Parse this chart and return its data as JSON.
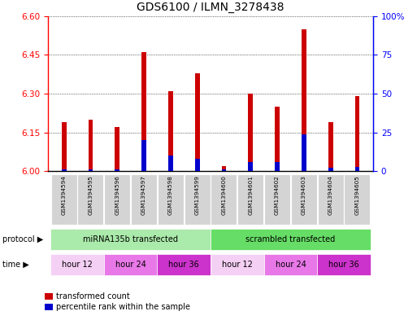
{
  "title": "GDS6100 / ILMN_3278438",
  "samples": [
    "GSM1394594",
    "GSM1394595",
    "GSM1394596",
    "GSM1394597",
    "GSM1394598",
    "GSM1394599",
    "GSM1394600",
    "GSM1394601",
    "GSM1394602",
    "GSM1394603",
    "GSM1394604",
    "GSM1394605"
  ],
  "red_values": [
    6.19,
    6.2,
    6.17,
    6.46,
    6.31,
    6.38,
    6.02,
    6.3,
    6.25,
    6.55,
    6.19,
    6.29
  ],
  "blue_pct": [
    1,
    1,
    1,
    20,
    10,
    8,
    1,
    6,
    6,
    24,
    2,
    3
  ],
  "ymin": 6.0,
  "ymax": 6.6,
  "yticks_left": [
    6.0,
    6.15,
    6.3,
    6.45,
    6.6
  ],
  "yticks_right": [
    0,
    25,
    50,
    75,
    100
  ],
  "protocol_labels": [
    "miRNA135b transfected",
    "scrambled transfected"
  ],
  "protocol_colors": [
    "#aaeaaa",
    "#66dd66"
  ],
  "protocol_ranges": [
    [
      0,
      6
    ],
    [
      6,
      12
    ]
  ],
  "time_colors": [
    "#f5d0f5",
    "#e878e8",
    "#cc33cc",
    "#f5d0f5",
    "#e878e8",
    "#cc33cc"
  ],
  "time_labels": [
    "hour 12",
    "hour 24",
    "hour 36",
    "hour 12",
    "hour 24",
    "hour 36"
  ],
  "time_ranges": [
    [
      0,
      2
    ],
    [
      2,
      4
    ],
    [
      4,
      6
    ],
    [
      6,
      8
    ],
    [
      8,
      10
    ],
    [
      10,
      12
    ]
  ],
  "legend_red": "transformed count",
  "legend_blue": "percentile rank within the sample",
  "bar_width": 0.18,
  "bar_color": "#cc0000",
  "blue_color": "#0000cc",
  "title_fontsize": 10,
  "tick_fontsize": 7.5,
  "label_fontsize": 7
}
